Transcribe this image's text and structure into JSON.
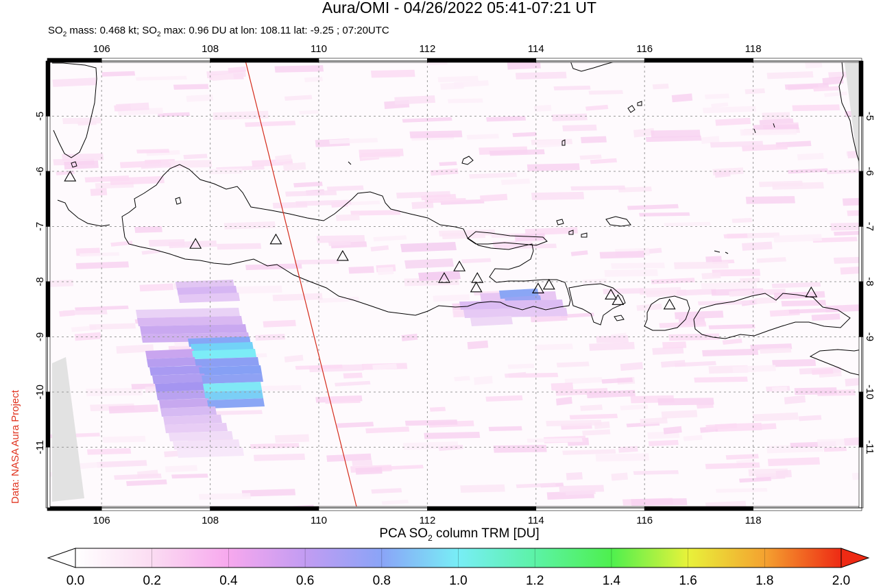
{
  "header": {
    "title": "Aura/OMI - 04/26/2022 05:41-07:21 UT",
    "subtitle_parts": [
      "SO",
      "2",
      " mass: 0.468 kt; SO",
      "2",
      " max: 0.96 DU at lon: 108.11 lat: -9.25 ; 07:20UTC"
    ]
  },
  "credit": "Data: NASA Aura Project",
  "map": {
    "lon_range": [
      105,
      120
    ],
    "lat_range": [
      -12.1,
      -4.0
    ],
    "lon_ticks": [
      "106",
      "108",
      "110",
      "112",
      "114",
      "116",
      "118"
    ],
    "lat_ticks": [
      "-5",
      "-6",
      "-7",
      "-8",
      "-9",
      "-10",
      "-11"
    ],
    "grid": true,
    "track_line": {
      "from": [
        108.65,
        -4.0
      ],
      "to": [
        110.7,
        -12.1
      ],
      "color": "#d42a1a"
    },
    "max_location": {
      "lon": 108.11,
      "lat": -9.25,
      "value": 0.96
    },
    "volcanoes": [
      {
        "lon": 105.42,
        "lat": -6.1
      },
      {
        "lon": 107.73,
        "lat": -7.32
      },
      {
        "lon": 109.21,
        "lat": -7.24
      },
      {
        "lon": 110.44,
        "lat": -7.54
      },
      {
        "lon": 112.31,
        "lat": -7.94
      },
      {
        "lon": 112.59,
        "lat": -7.73
      },
      {
        "lon": 112.92,
        "lat": -7.94
      },
      {
        "lon": 112.9,
        "lat": -8.11
      },
      {
        "lon": 114.04,
        "lat": -8.13
      },
      {
        "lon": 114.24,
        "lat": -8.06
      },
      {
        "lon": 115.38,
        "lat": -8.24
      },
      {
        "lon": 115.51,
        "lat": -8.34
      },
      {
        "lon": 116.46,
        "lat": -8.42
      },
      {
        "lon": 119.07,
        "lat": -8.2
      }
    ]
  },
  "colorbar": {
    "title_parts": [
      "PCA SO",
      "2",
      " column TRM [DU]"
    ],
    "min": 0.0,
    "max": 2.0,
    "labels": [
      "0.0",
      "0.2",
      "0.4",
      "0.6",
      "0.8",
      "1.0",
      "1.2",
      "1.4",
      "1.6",
      "1.8",
      "2.0"
    ],
    "stops": [
      "#ffffff",
      "#fbdcf2",
      "#f7a8ee",
      "#c29cf2",
      "#8aa4f7",
      "#78eef6",
      "#5cf2a6",
      "#4ef04e",
      "#e8f23a",
      "#f4a230",
      "#ee2a14"
    ]
  }
}
